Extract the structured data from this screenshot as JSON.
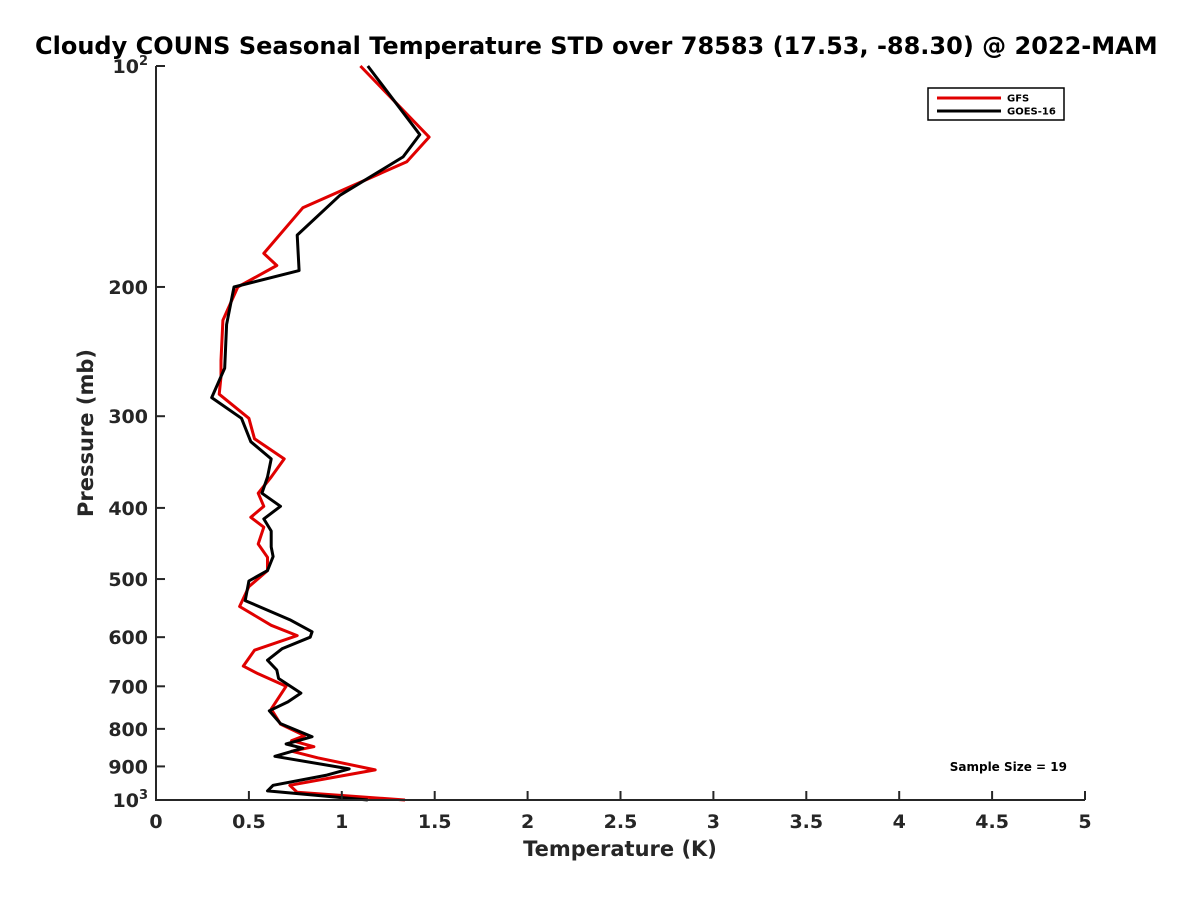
{
  "chart_data": {
    "type": "line",
    "title": "Cloudy COUNS Seasonal Temperature STD over 78583 (17.53, -88.30) @ 2022-MAM",
    "xlabel": "Temperature (K)",
    "ylabel": "Pressure (mb)",
    "xlim": [
      0,
      5
    ],
    "ylim": [
      100,
      1000
    ],
    "y_scale": "log",
    "y_reversed": true,
    "grid": false,
    "legend_position": "top-right",
    "x_ticks": [
      "0",
      "0.5",
      "1",
      "1.5",
      "2",
      "2.5",
      "3",
      "3.5",
      "4",
      "4.5",
      "5"
    ],
    "y_ticks": [
      {
        "value": 100,
        "base": "10",
        "exp": "2"
      },
      {
        "value": 200,
        "label": "200"
      },
      {
        "value": 300,
        "label": "300"
      },
      {
        "value": 400,
        "label": "400"
      },
      {
        "value": 500,
        "label": "500"
      },
      {
        "value": 600,
        "label": "600"
      },
      {
        "value": 700,
        "label": "700"
      },
      {
        "value": 800,
        "label": "800"
      },
      {
        "value": 900,
        "label": "900"
      },
      {
        "value": 1000,
        "base": "10",
        "exp": "3"
      }
    ],
    "annotation": "Sample Size = 19",
    "series": [
      {
        "name": "GFS",
        "color": "#e00000",
        "points": [
          [
            1.1,
            100
          ],
          [
            1.47,
            125
          ],
          [
            1.35,
            135
          ],
          [
            0.79,
            156
          ],
          [
            0.58,
            180
          ],
          [
            0.65,
            187
          ],
          [
            0.44,
            200
          ],
          [
            0.36,
            222
          ],
          [
            0.35,
            252
          ],
          [
            0.35,
            265
          ],
          [
            0.34,
            280
          ],
          [
            0.5,
            302
          ],
          [
            0.53,
            322
          ],
          [
            0.69,
            343
          ],
          [
            0.62,
            363
          ],
          [
            0.55,
            382
          ],
          [
            0.58,
            398
          ],
          [
            0.51,
            412
          ],
          [
            0.58,
            425
          ],
          [
            0.55,
            448
          ],
          [
            0.6,
            467
          ],
          [
            0.6,
            487
          ],
          [
            0.5,
            512
          ],
          [
            0.45,
            545
          ],
          [
            0.62,
            578
          ],
          [
            0.76,
            597
          ],
          [
            0.53,
            625
          ],
          [
            0.47,
            657
          ],
          [
            0.55,
            673
          ],
          [
            0.7,
            700
          ],
          [
            0.62,
            752
          ],
          [
            0.67,
            788
          ],
          [
            0.8,
            817
          ],
          [
            0.73,
            830
          ],
          [
            0.85,
            846
          ],
          [
            0.73,
            858
          ],
          [
            0.87,
            876
          ],
          [
            1.18,
            910
          ],
          [
            0.94,
            933
          ],
          [
            0.72,
            955
          ],
          [
            0.76,
            976
          ],
          [
            1.34,
            1000
          ]
        ]
      },
      {
        "name": "GOES-16",
        "color": "#000000",
        "points": [
          [
            1.14,
            100
          ],
          [
            1.42,
            124
          ],
          [
            1.33,
            133
          ],
          [
            0.99,
            150
          ],
          [
            0.76,
            170
          ],
          [
            0.77,
            190
          ],
          [
            0.42,
            200
          ],
          [
            0.38,
            225
          ],
          [
            0.37,
            258
          ],
          [
            0.3,
            283
          ],
          [
            0.46,
            302
          ],
          [
            0.51,
            325
          ],
          [
            0.62,
            343
          ],
          [
            0.6,
            363
          ],
          [
            0.57,
            382
          ],
          [
            0.67,
            398
          ],
          [
            0.58,
            414
          ],
          [
            0.62,
            430
          ],
          [
            0.62,
            452
          ],
          [
            0.63,
            466
          ],
          [
            0.6,
            487
          ],
          [
            0.5,
            503
          ],
          [
            0.48,
            535
          ],
          [
            0.72,
            568
          ],
          [
            0.84,
            590
          ],
          [
            0.83,
            600
          ],
          [
            0.68,
            622
          ],
          [
            0.6,
            645
          ],
          [
            0.65,
            665
          ],
          [
            0.66,
            683
          ],
          [
            0.78,
            715
          ],
          [
            0.71,
            735
          ],
          [
            0.61,
            756
          ],
          [
            0.67,
            787
          ],
          [
            0.84,
            820
          ],
          [
            0.7,
            839
          ],
          [
            0.79,
            850
          ],
          [
            0.64,
            872
          ],
          [
            1.04,
            907
          ],
          [
            0.92,
            925
          ],
          [
            0.63,
            955
          ],
          [
            0.6,
            972
          ],
          [
            1.14,
            1000
          ]
        ]
      }
    ]
  }
}
